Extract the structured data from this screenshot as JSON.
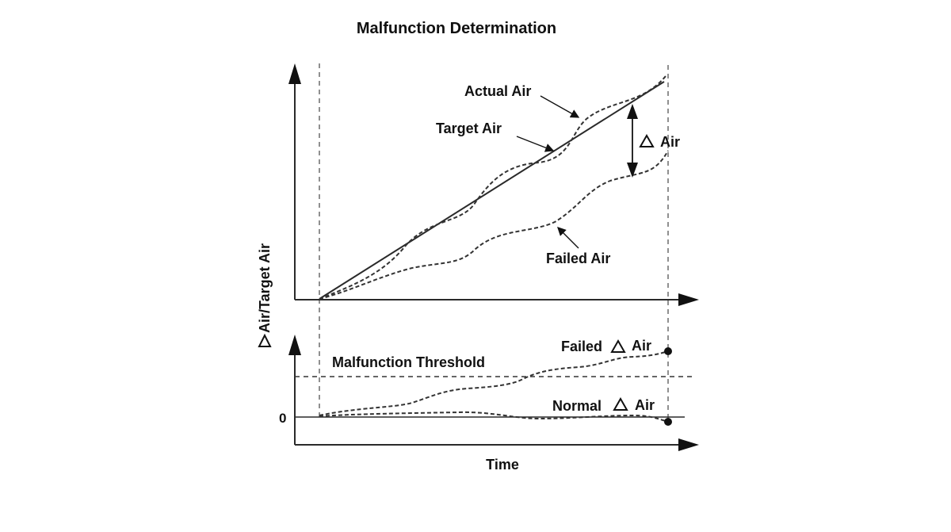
{
  "title": "Malfunction Determination",
  "y_axis_label": "Air/Target Air",
  "x_axis_label": "Time",
  "labels": {
    "actual_air": "Actual Air",
    "target_air": "Target Air",
    "delta_air": "Air",
    "failed_air": "Failed Air",
    "malfunction_threshold": "Malfunction Threshold",
    "failed_delta_air_prefix": "Failed",
    "failed_delta_air_suffix": "Air",
    "normal_delta_air_prefix": "Normal",
    "normal_delta_air_suffix": "Air",
    "zero": "0"
  },
  "symbols": {
    "delta": "triangle-icon"
  },
  "colors": {
    "ink": "#111111",
    "background": "#ffffff"
  }
}
